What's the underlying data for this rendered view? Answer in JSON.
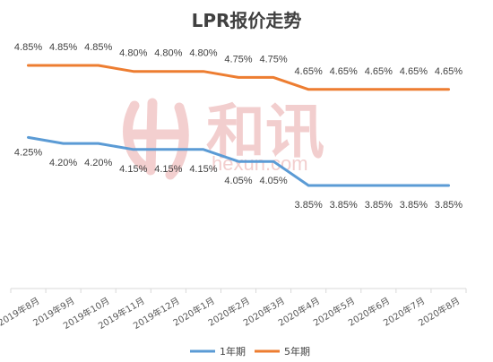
{
  "chart_data": {
    "type": "line",
    "title": "LPR报价走势",
    "categories": [
      "2019年8月",
      "2019年9月",
      "2019年10月",
      "2019年11月",
      "2019年12月",
      "2020年1月",
      "2020年2月",
      "2020年3月",
      "2020年4月",
      "2020年5月",
      "2020年6月",
      "2020年7月",
      "2020年8月"
    ],
    "series": [
      {
        "name": "1年期",
        "color": "#5b9bd5",
        "values": [
          4.25,
          4.2,
          4.2,
          4.15,
          4.15,
          4.15,
          4.05,
          4.05,
          3.85,
          3.85,
          3.85,
          3.85,
          3.85
        ],
        "labels": [
          "4.25%",
          "4.20%",
          "4.20%",
          "4.15%",
          "4.15%",
          "4.15%",
          "4.05%",
          "4.05%",
          "3.85%",
          "3.85%",
          "3.85%",
          "3.85%",
          "3.85%"
        ]
      },
      {
        "name": "5年期",
        "color": "#ed7d31",
        "values": [
          4.85,
          4.85,
          4.85,
          4.8,
          4.8,
          4.8,
          4.75,
          4.75,
          4.65,
          4.65,
          4.65,
          4.65,
          4.65
        ],
        "labels": [
          "4.85%",
          "4.85%",
          "4.85%",
          "4.80%",
          "4.80%",
          "4.80%",
          "4.75%",
          "4.75%",
          "4.65%",
          "4.65%",
          "4.65%",
          "4.65%",
          "4.65%"
        ]
      }
    ],
    "ylim": [
      3.5,
      5.0
    ],
    "grid": false,
    "legend_position": "bottom"
  },
  "watermark": {
    "text": "和讯",
    "url": "hexun.com"
  }
}
